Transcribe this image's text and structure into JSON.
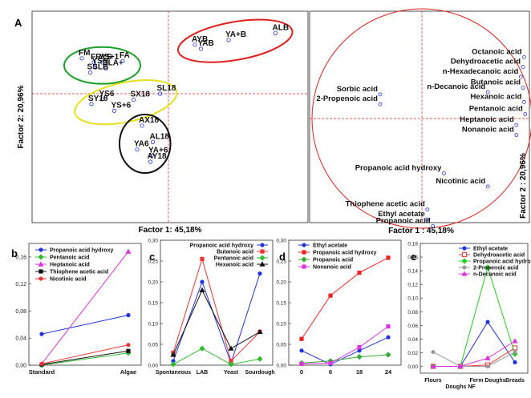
{
  "chart_data": [
    {
      "panel": "A",
      "type": "scatter",
      "subtype": "pca-score-plot",
      "xlabel": "Factor 1: 45,18%",
      "ylabel": "Factor 2: 20,96%",
      "points": [
        {
          "label": "FM",
          "x": -3.6,
          "y": 2.6
        },
        {
          "label": "FRYS",
          "x": -3.1,
          "y": 2.3
        },
        {
          "label": "YS+1",
          "x": -2.75,
          "y": 2.3
        },
        {
          "label": "YSN",
          "x": -3.05,
          "y": 2.0
        },
        {
          "label": "SLA+",
          "x": -2.6,
          "y": 1.85
        },
        {
          "label": "SSLB",
          "x": -3.25,
          "y": 1.55
        },
        {
          "label": "FA",
          "x": -1.9,
          "y": 2.4
        },
        {
          "label": "AYB",
          "x": 1.1,
          "y": 3.6
        },
        {
          "label": "YAB",
          "x": 1.35,
          "y": 3.3
        },
        {
          "label": "YA+B",
          "x": 2.5,
          "y": 3.95
        },
        {
          "label": "ALB",
          "x": 4.45,
          "y": 4.45
        },
        {
          "label": "SL18",
          "x": -0.35,
          "y": 0.0
        },
        {
          "label": "SX18",
          "x": -1.45,
          "y": -0.45
        },
        {
          "label": "YS6",
          "x": -2.75,
          "y": -0.4
        },
        {
          "label": "SY18",
          "x": -3.2,
          "y": -0.75
        },
        {
          "label": "YS+6",
          "x": -2.25,
          "y": -1.25
        },
        {
          "label": "AX18",
          "x": -1.1,
          "y": -2.35
        },
        {
          "label": "AL18",
          "x": -0.65,
          "y": -3.55
        },
        {
          "label": "YA6",
          "x": -1.3,
          "y": -4.1
        },
        {
          "label": "YA+6",
          "x": -0.7,
          "y": -4.55
        },
        {
          "label": "AY18",
          "x": -0.75,
          "y": -5.0
        }
      ],
      "groups": [
        {
          "color": "#1aa02a",
          "members": [
            "FM",
            "FRYS",
            "YS+1",
            "YSN",
            "SLA+",
            "SSLB",
            "FA"
          ]
        },
        {
          "color": "#e02020",
          "members": [
            "AYB",
            "YAB",
            "YA+B",
            "ALB"
          ]
        },
        {
          "color": "#e6e020",
          "members": [
            "SL18",
            "SX18",
            "YS6",
            "SY18",
            "YS+6"
          ]
        },
        {
          "color": "#111111",
          "members": [
            "AX18",
            "AL18",
            "YA6",
            "YA+6",
            "AY18"
          ]
        }
      ]
    },
    {
      "panel": "A2",
      "type": "scatter",
      "subtype": "pca-loading-plot",
      "xlabel": "Factor 1 : 45,18%",
      "ylabel": "Factor 2 : 20,96%",
      "points": [
        {
          "label": "Octanoic acid",
          "x": 0.93,
          "y": 0.56
        },
        {
          "label": "Dehydroacetic acid",
          "x": 0.92,
          "y": 0.47
        },
        {
          "label": "n-Hexadecanoic acid",
          "x": 0.9,
          "y": 0.38
        },
        {
          "label": "Butanoic acid",
          "x": 0.92,
          "y": 0.28
        },
        {
          "label": "n-Decanoic acid",
          "x": 0.6,
          "y": 0.24
        },
        {
          "label": "Hexanoic acid",
          "x": 0.93,
          "y": 0.15
        },
        {
          "label": "Pentanoic acid",
          "x": 0.94,
          "y": 0.04
        },
        {
          "label": "Heptanoic acid",
          "x": 0.86,
          "y": -0.06
        },
        {
          "label": "Nonanoic acid",
          "x": 0.86,
          "y": -0.15
        },
        {
          "label": "Sorbic acid",
          "x": -0.38,
          "y": 0.22
        },
        {
          "label": "2-Propenoic acid",
          "x": -0.38,
          "y": 0.13
        },
        {
          "label": "Propanoic acid hydroxy",
          "x": 0.2,
          "y": -0.5
        },
        {
          "label": "Nicotinic acid",
          "x": 0.6,
          "y": -0.62
        },
        {
          "label": "Thiophene acetic acid",
          "x": 0.05,
          "y": -0.83
        },
        {
          "label": "Ethyl acetate",
          "x": 0.05,
          "y": -0.92
        },
        {
          "label": "Propanoic acid",
          "x": 0.1,
          "y": -0.98
        }
      ],
      "circle_color": "#e02020"
    },
    {
      "panel": "b",
      "type": "line",
      "categories": [
        "Standard",
        "Algae"
      ],
      "ylim": [
        0,
        0.18
      ],
      "yticks": [
        "0,00",
        "0,04",
        "0,08",
        "0,12",
        "0,16"
      ],
      "ytick_values": [
        0,
        0.04,
        0.08,
        0.12,
        0.16
      ],
      "series": [
        {
          "name": "Propanoic acid hydroxy",
          "color": "#2233dd",
          "marker": "circle",
          "values": [
            0.046,
            0.074
          ]
        },
        {
          "name": "Pentanoic acid",
          "color": "#33bb33",
          "marker": "diamond",
          "values": [
            0.0,
            0.018
          ]
        },
        {
          "name": "Heptanoic acid",
          "color": "#dd33dd",
          "marker": "triangle",
          "values": [
            0.002,
            0.168
          ]
        },
        {
          "name": "Thiophene acetic acid",
          "color": "#111111",
          "marker": "square",
          "values": [
            0.001,
            0.021
          ]
        },
        {
          "name": "Nicotinic acid",
          "color": "#ee3333",
          "marker": "circle",
          "values": [
            0.002,
            0.03
          ]
        }
      ]
    },
    {
      "panel": "c",
      "type": "line",
      "categories": [
        "Spontaneous",
        "LAB",
        "Yeast",
        "Sourdough"
      ],
      "ylim": [
        0,
        0.3
      ],
      "yticks": [
        "0,00",
        "0,05",
        "0,10",
        "0,15",
        "0,20",
        "0,25",
        "0,30"
      ],
      "ytick_values": [
        0,
        0.05,
        0.1,
        0.15,
        0.2,
        0.25,
        0.3
      ],
      "series": [
        {
          "name": "Propanoic acid hydroxy",
          "color": "#2233dd",
          "marker": "circle",
          "values": [
            0.01,
            0.2,
            0.005,
            0.22
          ]
        },
        {
          "name": "Butanoic acid",
          "color": "#ee3333",
          "marker": "square",
          "values": [
            0.03,
            0.255,
            0.01,
            0.08
          ]
        },
        {
          "name": "Pentanoic acid",
          "color": "#33bb33",
          "marker": "diamond",
          "values": [
            0.002,
            0.04,
            0.002,
            0.015
          ]
        },
        {
          "name": "Hexanoic acid",
          "color": "#111111",
          "marker": "triangle",
          "values": [
            0.025,
            0.18,
            0.04,
            0.08
          ]
        }
      ]
    },
    {
      "panel": "d",
      "type": "line",
      "categories": [
        "0",
        "6",
        "18",
        "24"
      ],
      "ylim": [
        0,
        0.3
      ],
      "yticks": [
        "0,00",
        "0,05",
        "0,10",
        "0,15",
        "0,20",
        "0,25",
        "0,30"
      ],
      "ytick_values": [
        0,
        0.05,
        0.1,
        0.15,
        0.2,
        0.25,
        0.3
      ],
      "series": [
        {
          "name": "Ethyl acetate",
          "color": "#2233dd",
          "marker": "circle",
          "values": [
            0.035,
            0.002,
            0.035,
            0.067
          ]
        },
        {
          "name": "Propanoic acid hydroxy",
          "color": "#ee2222",
          "marker": "square",
          "values": [
            0.063,
            0.167,
            0.222,
            0.258
          ]
        },
        {
          "name": "Propanoic acid",
          "color": "#33aa33",
          "marker": "diamond",
          "values": [
            0.005,
            0.01,
            0.02,
            0.025
          ]
        },
        {
          "name": "Nonanoic acid",
          "color": "#dd33dd",
          "marker": "square",
          "values": [
            0.003,
            0.005,
            0.043,
            0.093
          ]
        }
      ]
    },
    {
      "panel": "e",
      "type": "line",
      "categories": [
        "Flours",
        "Doughs NF",
        "Ferm Doughs",
        "Breads"
      ],
      "ylim": [
        -0.01,
        0.18
      ],
      "yticks": [
        "0,00",
        "0,02",
        "0,04",
        "0,06",
        "0,08",
        "0,10",
        "0,12",
        "0,14",
        "0,16",
        "0,18"
      ],
      "ytick_values": [
        0,
        0.02,
        0.04,
        0.06,
        0.08,
        0.1,
        0.12,
        0.14,
        0.16,
        0.18
      ],
      "series": [
        {
          "name": "Ethyl acetate",
          "color": "#2233dd",
          "marker": "circle",
          "values": [
            0.0,
            0.0,
            0.065,
            0.006
          ]
        },
        {
          "name": "Dehydroacetic acid",
          "color": "#ee3333",
          "marker": "square-open",
          "values": [
            0.0,
            0.0,
            0.002,
            0.027
          ]
        },
        {
          "name": "Propanoic acid hydroxy",
          "color": "#22cc22",
          "marker": "diamond",
          "values": [
            0.0,
            0.0,
            0.145,
            0.018
          ]
        },
        {
          "name": "2-Propenoic acid",
          "color": "#999999",
          "marker": "circle",
          "values": [
            0.021,
            0.0,
            0.0,
            0.021
          ]
        },
        {
          "name": "n-Decanoic acid",
          "color": "#dd33dd",
          "marker": "triangle",
          "values": [
            0.0,
            0.0,
            0.012,
            0.037
          ]
        }
      ]
    }
  ],
  "panel_labels": {
    "A": "A",
    "b": "b",
    "c": "c",
    "d": "d",
    "e": "e"
  }
}
